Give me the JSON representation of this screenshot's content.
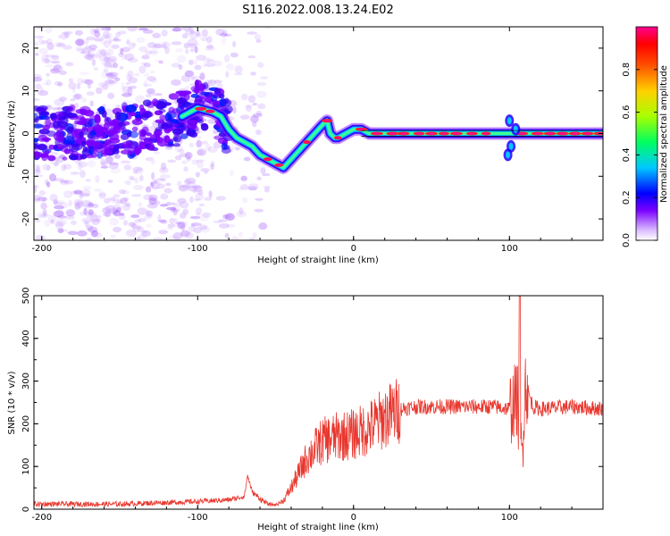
{
  "title": "S116.2022.008.13.24.E02",
  "chart_data": [
    {
      "type": "heatmap",
      "description_of_pattern": "time-frequency energy of signal along straight-line height axis",
      "xlabel": "Height of straight line (km)",
      "ylabel": "Frequency (Hz)",
      "xlim": [
        -205,
        160
      ],
      "ylim": [
        -25,
        25
      ],
      "xticks": [
        -200,
        -100,
        0,
        100
      ],
      "yticks": [
        -20,
        -10,
        0,
        10,
        20
      ],
      "ridge": {
        "x": [
          -205,
          -180,
          -160,
          -140,
          -120,
          -110,
          -100,
          -90,
          -85,
          -80,
          -75,
          -70,
          -65,
          -60,
          -55,
          -50,
          -45,
          -40,
          -35,
          -30,
          -25,
          -20,
          -17,
          -15,
          -12,
          -10,
          -5,
          0,
          5,
          10,
          20,
          40,
          60,
          80,
          100,
          120,
          140,
          160
        ],
        "y": [
          0,
          0,
          1,
          1,
          2,
          4,
          6,
          5,
          4,
          1,
          -1,
          -2,
          -3,
          -5,
          -6,
          -7,
          -8,
          -6,
          -4,
          -2,
          0,
          2,
          3,
          0,
          -1,
          -1,
          0,
          1,
          1,
          0,
          0,
          0,
          0,
          0,
          0,
          0,
          0,
          0
        ]
      },
      "colorbar": {
        "label": "Normalized spectral amplitude",
        "range": [
          0.0,
          1.0
        ],
        "ticks": [
          "0.0",
          "0.2",
          "0.4",
          "0.6",
          "0.8"
        ],
        "tick_values": [
          0.0,
          0.2,
          0.4,
          0.6,
          0.8
        ],
        "colors": [
          "#ffffff",
          "#c9a0ff",
          "#7a00ff",
          "#0000ff",
          "#00c0ff",
          "#00ff60",
          "#c0ff00",
          "#ff8000",
          "#ff0000",
          "#ff0080"
        ]
      }
    },
    {
      "type": "line",
      "xlabel": "Height of straight line (km)",
      "ylabel": "SNR (10 * v/v)",
      "xlim": [
        -205,
        160
      ],
      "ylim": [
        0,
        500
      ],
      "xticks": [
        -200,
        -100,
        0,
        100
      ],
      "yticks": [
        0,
        100,
        200,
        300,
        400,
        500
      ],
      "line_color": "#e8372e",
      "envelope": {
        "x": [
          -205,
          -150,
          -100,
          -80,
          -70,
          -68,
          -65,
          -60,
          -55,
          -50,
          -45,
          -40,
          -30,
          -20,
          -10,
          0,
          10,
          20,
          30,
          40,
          60,
          80,
          90,
          100,
          105,
          108,
          110,
          115,
          120,
          140,
          160
        ],
        "y": [
          12,
          12,
          18,
          22,
          30,
          80,
          40,
          25,
          12,
          10,
          20,
          50,
          120,
          160,
          170,
          175,
          190,
          215,
          235,
          240,
          240,
          240,
          240,
          235,
          260,
          120,
          300,
          240,
          235,
          240,
          235
        ]
      }
    }
  ]
}
